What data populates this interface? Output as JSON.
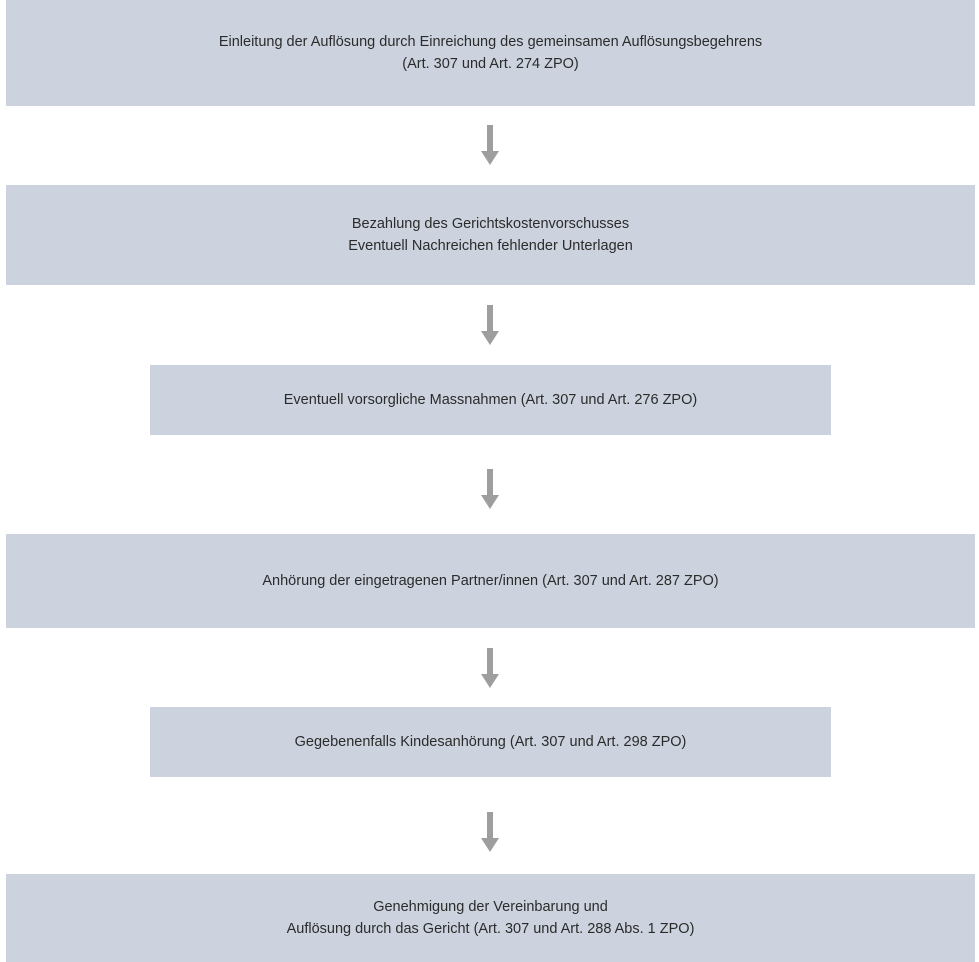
{
  "diagram": {
    "box_color": "#ccd3de",
    "arrow_color": "#9e9e9e",
    "text_color": "#2b2b2b",
    "steps": [
      {
        "line1": "Einleitung der Auflösung durch Einreichung des gemeinsamen Auflösungsbegehrens",
        "line2": "(Art. 307 und Art. 274 ZPO)"
      },
      {
        "line1": "Bezahlung des Gerichtskostenvorschusses",
        "line2": "Eventuell Nachreichen fehlender Unterlagen"
      },
      {
        "line1": "Eventuell vorsorgliche Massnahmen (Art. 307 und Art. 276 ZPO)"
      },
      {
        "line1": "Anhörung der eingetragenen Partner/innen (Art. 307 und Art. 287 ZPO)"
      },
      {
        "line1": "Gegebenenfalls Kindesanhörung (Art. 307 und Art. 298 ZPO)"
      },
      {
        "line1": "Genehmigung der Vereinbarung und",
        "line2": "Auflösung durch das Gericht (Art. 307 und Art. 288 Abs. 1 ZPO)"
      }
    ]
  }
}
